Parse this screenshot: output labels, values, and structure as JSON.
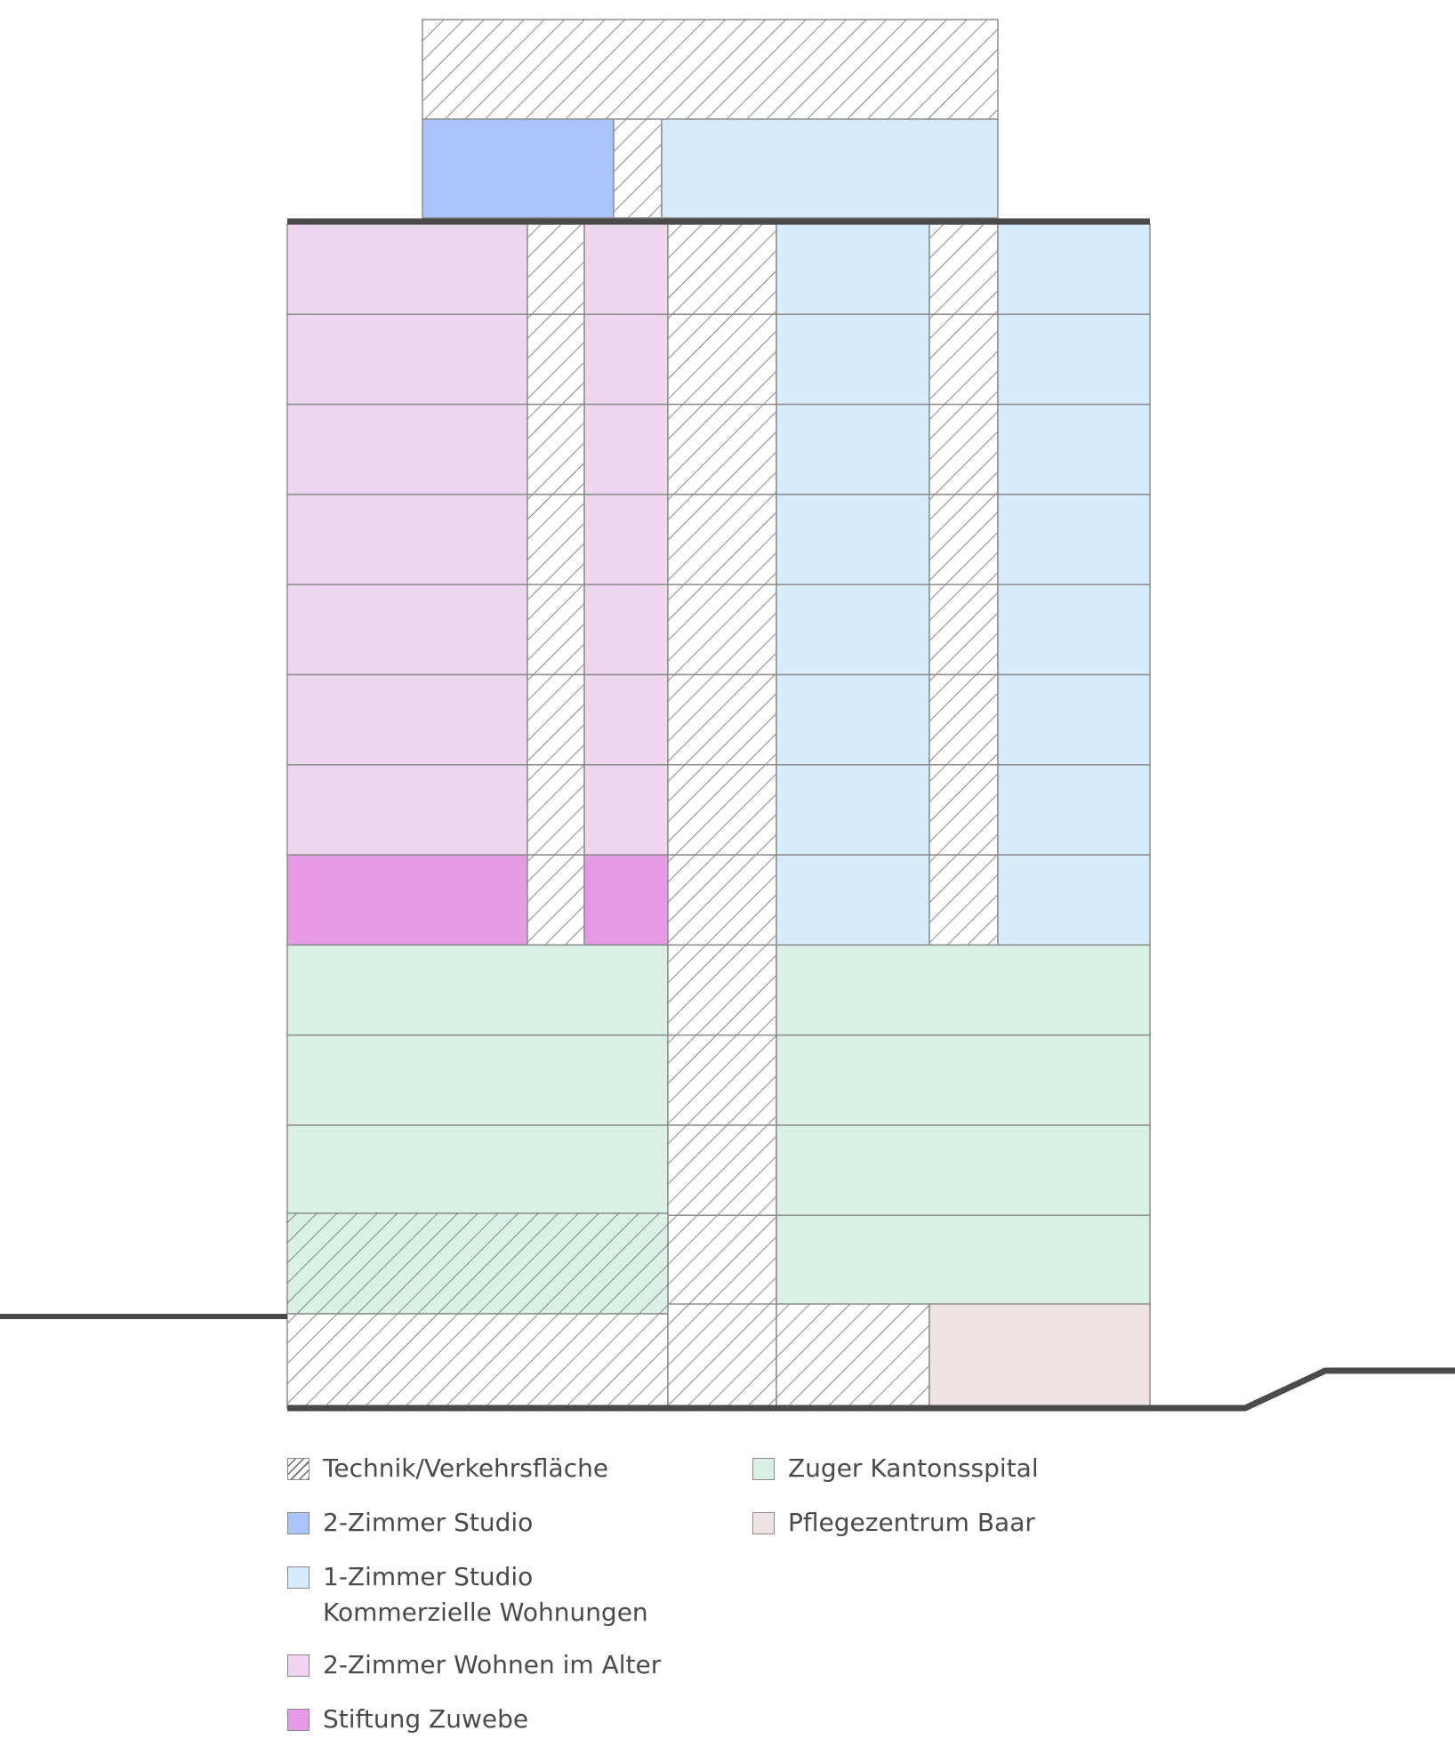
{
  "colors": {
    "hatch": "#ffffff",
    "two_room_studio": "#aac4fb",
    "one_room_studio": "#d6ebfc",
    "senior_living": "#eed5f0",
    "stiftung": "#e59ae5",
    "kantonsspital": "#d9f0e4",
    "pflegezentrum": "#f0e3e3",
    "grid_line": "#8e8e8e",
    "thick_line": "#4a4a4a"
  },
  "legend": [
    {
      "label": "Technik/Verkehrsfläche",
      "swatch": "hatch"
    },
    {
      "label": "2-Zimmer Studio",
      "swatch": "two_room_studio"
    },
    {
      "label": "1-Zimmer Studio\nKommerzielle Wohnungen",
      "swatch": "one_room_studio"
    },
    {
      "label": "2-Zimmer Wohnen im Alter",
      "swatch": "senior_living"
    },
    {
      "label": "Stiftung Zuwebe",
      "swatch": "stiftung"
    },
    {
      "label": "Zuger Kantonsspital",
      "swatch": "kantonsspital"
    },
    {
      "label": "Pflegezentrum Baar",
      "swatch": "pflegezentrum"
    }
  ]
}
